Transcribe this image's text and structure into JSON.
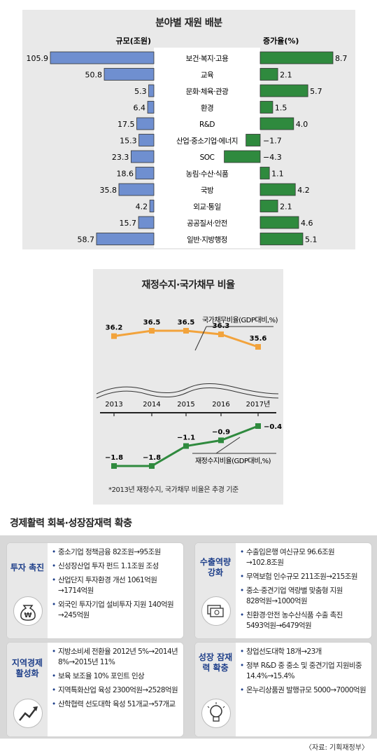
{
  "chart_data": [
    {
      "type": "bar",
      "title": "분야별 재원 배분",
      "left_header": "규모(조원)",
      "right_header": "증가율(%)",
      "categories": [
        "보건·복지·고용",
        "교육",
        "문화·체육·관광",
        "환경",
        "R&D",
        "산업·중소기업·에너지",
        "SOC",
        "농림·수산·식품",
        "국방",
        "외교·통일",
        "공공질서·안전",
        "일반·지방행정"
      ],
      "series": [
        {
          "name": "규모(조원)",
          "values": [
            105.9,
            50.8,
            5.3,
            6.4,
            17.5,
            15.3,
            23.3,
            18.6,
            35.8,
            4.2,
            15.7,
            58.7
          ],
          "labels": [
            "105.9",
            "50.8",
            "5.3",
            "6.4",
            "17.5",
            "15.3",
            "23.3",
            "18.6",
            "35.8",
            "4.2",
            "15.7",
            "58.7"
          ]
        },
        {
          "name": "증가율(%)",
          "values": [
            8.7,
            2.1,
            5.7,
            1.5,
            4.0,
            -1.7,
            -4.3,
            1.1,
            4.2,
            2.1,
            4.6,
            5.1
          ],
          "labels": [
            "8.7",
            "2.1",
            "5.7",
            "1.5",
            "4.0",
            "−1.7",
            "−4.3",
            "1.1",
            "4.2",
            "2.1",
            "4.6",
            "5.1"
          ]
        }
      ],
      "colors": {
        "left_bar": "#6f8fd0",
        "right_bar": "#2f8a3e"
      }
    },
    {
      "type": "line",
      "title": "재정수지·국가채무 비율",
      "x": [
        "2013",
        "2014",
        "2015",
        "2016",
        "2017년"
      ],
      "series": [
        {
          "name": "국가채무비율(GDP대비,%)",
          "values": [
            36.2,
            36.5,
            36.5,
            36.3,
            35.6
          ],
          "labels": [
            "36.2",
            "36.5",
            "36.5",
            "36.3",
            "35.6"
          ],
          "color": "#f2a33c"
        },
        {
          "name": "재정수지비율(GDP대비,%)",
          "values": [
            -1.8,
            -1.8,
            -1.1,
            -0.9,
            -0.4
          ],
          "labels": [
            "−1.8",
            "−1.8",
            "−1.1",
            "−0.9",
            "−0.4"
          ],
          "color": "#2f8a3e"
        }
      ],
      "note": "*2013년 재정수지, 국가채무 비율은 추경 기준"
    }
  ],
  "section": {
    "title": "경제활력 회복·성장잠재력 확충",
    "source": "〈자료: 기획재정부〉",
    "cards": [
      {
        "label": "투자 촉진",
        "icon": "money-bag-icon",
        "items": [
          "중소기업 정책금융 82조원→95조원",
          "신성장산업 투자 펀드 1.1조원 조성",
          "산업단지 투자환경 개선 1061억원\n→1714억원",
          "외국인 투자기업 설비투자 지원 140억원\n→245억원"
        ]
      },
      {
        "label": "수출역량\n강화",
        "icon": "money-cards-icon",
        "items": [
          "수출입은행 여신규모 96.6조원\n→102.8조원",
          "무역보험 인수규모  211조원→215조원",
          "중소·중견기업 역량별 맞춤형 지원\n828억원→1000억원",
          "친환경·안전 농수산식품 수출 촉진\n5493억원→6479억원"
        ]
      },
      {
        "label": "지역경제\n활성화",
        "icon": "trend-arrow-icon",
        "items": [
          "지방소비세 전환율 2012년 5%→2014년\n8%→2015년 11%",
          "보육 보조율  10% 포인트 인상",
          "지역특화산업 육성 2300억원→2528억원",
          "산학협력 선도대학 육성 51개교→57개교"
        ]
      },
      {
        "label": "성장\n잠재력\n확충",
        "icon": "lightbulb-icon",
        "items": [
          "창업선도대학 18개→23개",
          "정부 R&D 중 중소 및 중견기업 지원비중\n14.4%→15.4%",
          "온누리상품권 발행규모 5000→7000억원"
        ]
      }
    ]
  }
}
